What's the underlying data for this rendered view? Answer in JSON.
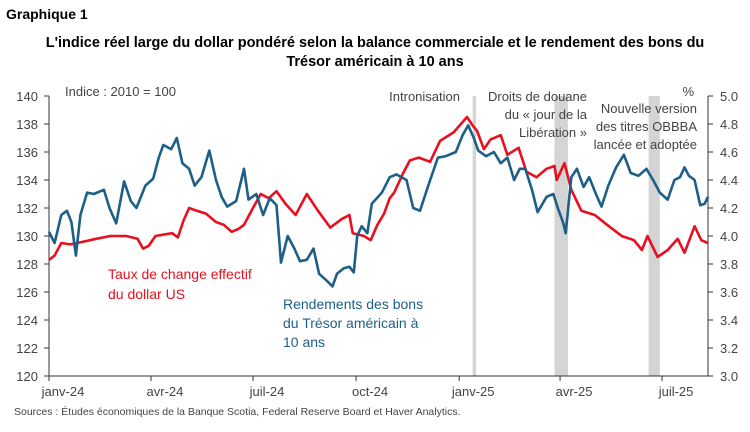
{
  "header": {
    "label": "Graphique 1"
  },
  "chart_data": {
    "type": "line",
    "title_lines": [
      "L'indice réel large du dollar pondéré selon la balance commerciale et le rendement des bons du",
      "Trésor américain à 10 ans"
    ],
    "left_axis": {
      "label": "Indice : 2010 = 100",
      "range": [
        120,
        140
      ],
      "ticks": [
        120,
        122,
        124,
        126,
        128,
        130,
        132,
        134,
        136,
        138,
        140
      ]
    },
    "right_axis": {
      "label": "%",
      "range": [
        3.0,
        5.0
      ],
      "ticks": [
        "3.0",
        "3.2",
        "3.4",
        "3.6",
        "3.8",
        "4.0",
        "4.2",
        "4.4",
        "4.6",
        "4.8",
        "5.0"
      ]
    },
    "x_axis": {
      "range": [
        "2024-01-01",
        "2025-08-11"
      ],
      "ticks": [
        {
          "date": "2024-01-01",
          "label": "janv-24"
        },
        {
          "date": "2024-04-01",
          "label": "avr-24"
        },
        {
          "date": "2024-07-01",
          "label": "juil-24"
        },
        {
          "date": "2024-10-01",
          "label": "oct-24"
        },
        {
          "date": "2025-01-01",
          "label": "janv-25"
        },
        {
          "date": "2025-04-01",
          "label": "avr-25"
        },
        {
          "date": "2025-07-01",
          "label": "juil-25"
        }
      ]
    },
    "grid": false,
    "series": [
      {
        "name_lines": [
          "Taux de change effectif",
          "du dollar US"
        ],
        "axis": "left",
        "color": "#e8101e",
        "points": [
          [
            "2024-01-01",
            128.3
          ],
          [
            "2024-01-06",
            128.6
          ],
          [
            "2024-01-12",
            129.5
          ],
          [
            "2024-01-20",
            129.4
          ],
          [
            "2024-02-01",
            129.6
          ],
          [
            "2024-02-12",
            129.8
          ],
          [
            "2024-02-25",
            130.0
          ],
          [
            "2024-03-10",
            130.0
          ],
          [
            "2024-03-20",
            129.8
          ],
          [
            "2024-03-25",
            129.1
          ],
          [
            "2024-03-30",
            129.3
          ],
          [
            "2024-04-05",
            130.0
          ],
          [
            "2024-04-12",
            130.1
          ],
          [
            "2024-04-20",
            130.2
          ],
          [
            "2024-04-25",
            129.9
          ],
          [
            "2024-04-30",
            131.1
          ],
          [
            "2024-05-05",
            132.0
          ],
          [
            "2024-05-12",
            131.8
          ],
          [
            "2024-05-20",
            131.6
          ],
          [
            "2024-05-29",
            131.0
          ],
          [
            "2024-06-05",
            130.8
          ],
          [
            "2024-06-12",
            130.3
          ],
          [
            "2024-06-18",
            130.5
          ],
          [
            "2024-06-23",
            130.8
          ],
          [
            "2024-07-01",
            132.0
          ],
          [
            "2024-07-08",
            133.0
          ],
          [
            "2024-07-15",
            132.7
          ],
          [
            "2024-07-22",
            133.2
          ],
          [
            "2024-07-30",
            132.3
          ],
          [
            "2024-08-08",
            131.5
          ],
          [
            "2024-08-18",
            133.0
          ],
          [
            "2024-08-28",
            131.8
          ],
          [
            "2024-09-08",
            130.6
          ],
          [
            "2024-09-18",
            131.2
          ],
          [
            "2024-09-25",
            131.5
          ],
          [
            "2024-09-28",
            130.2
          ],
          [
            "2024-10-08",
            130.0
          ],
          [
            "2024-10-14",
            129.7
          ],
          [
            "2024-10-20",
            130.8
          ],
          [
            "2024-10-26",
            131.6
          ],
          [
            "2024-10-31",
            132.7
          ],
          [
            "2024-11-04",
            133.1
          ],
          [
            "2024-11-12",
            134.5
          ],
          [
            "2024-11-18",
            135.4
          ],
          [
            "2024-11-26",
            135.6
          ],
          [
            "2024-12-06",
            135.3
          ],
          [
            "2024-12-15",
            136.8
          ],
          [
            "2024-12-27",
            137.4
          ],
          [
            "2025-01-08",
            138.5
          ],
          [
            "2025-01-13",
            137.9
          ],
          [
            "2025-01-17",
            137.5
          ],
          [
            "2025-01-23",
            136.2
          ],
          [
            "2025-01-29",
            136.9
          ],
          [
            "2025-02-07",
            137.2
          ],
          [
            "2025-02-13",
            135.8
          ],
          [
            "2025-02-23",
            136.3
          ],
          [
            "2025-03-02",
            134.6
          ],
          [
            "2025-03-11",
            134.2
          ],
          [
            "2025-03-20",
            134.8
          ],
          [
            "2025-03-27",
            135.0
          ],
          [
            "2025-03-29",
            134.0
          ],
          [
            "2025-04-05",
            135.2
          ],
          [
            "2025-04-11",
            133.3
          ],
          [
            "2025-04-20",
            131.8
          ],
          [
            "2025-05-02",
            131.5
          ],
          [
            "2025-05-13",
            130.8
          ],
          [
            "2025-05-26",
            130.0
          ],
          [
            "2025-06-06",
            129.7
          ],
          [
            "2025-06-13",
            129.0
          ],
          [
            "2025-06-18",
            130.0
          ],
          [
            "2025-06-27",
            128.5
          ],
          [
            "2025-07-06",
            129.0
          ],
          [
            "2025-07-15",
            129.8
          ],
          [
            "2025-07-21",
            128.8
          ],
          [
            "2025-07-30",
            130.7
          ],
          [
            "2025-08-05",
            129.7
          ],
          [
            "2025-08-11",
            129.5
          ]
        ]
      },
      {
        "name_lines": [
          "Rendements des bons",
          "du Trésor américain à",
          "10 ans"
        ],
        "axis": "right",
        "color": "#1d5f87",
        "points": [
          [
            "2024-01-01",
            4.03
          ],
          [
            "2024-01-06",
            3.95
          ],
          [
            "2024-01-12",
            4.15
          ],
          [
            "2024-01-17",
            4.18
          ],
          [
            "2024-01-21",
            4.1
          ],
          [
            "2024-01-25",
            3.86
          ],
          [
            "2024-01-29",
            4.15
          ],
          [
            "2024-02-04",
            4.31
          ],
          [
            "2024-02-10",
            4.3
          ],
          [
            "2024-02-19",
            4.33
          ],
          [
            "2024-02-24",
            4.2
          ],
          [
            "2024-03-01",
            4.09
          ],
          [
            "2024-03-08",
            4.39
          ],
          [
            "2024-03-14",
            4.25
          ],
          [
            "2024-03-19",
            4.2
          ],
          [
            "2024-03-27",
            4.36
          ],
          [
            "2024-04-03",
            4.41
          ],
          [
            "2024-04-08",
            4.56
          ],
          [
            "2024-04-12",
            4.65
          ],
          [
            "2024-04-19",
            4.62
          ],
          [
            "2024-04-24",
            4.7
          ],
          [
            "2024-04-29",
            4.52
          ],
          [
            "2024-05-05",
            4.48
          ],
          [
            "2024-05-10",
            4.36
          ],
          [
            "2024-05-16",
            4.42
          ],
          [
            "2024-05-23",
            4.61
          ],
          [
            "2024-05-29",
            4.4
          ],
          [
            "2024-06-03",
            4.28
          ],
          [
            "2024-06-08",
            4.21
          ],
          [
            "2024-06-16",
            4.25
          ],
          [
            "2024-06-23",
            4.48
          ],
          [
            "2024-06-27",
            4.26
          ],
          [
            "2024-07-04",
            4.3
          ],
          [
            "2024-07-10",
            4.15
          ],
          [
            "2024-07-16",
            4.27
          ],
          [
            "2024-07-22",
            4.22
          ],
          [
            "2024-07-26",
            3.81
          ],
          [
            "2024-08-01",
            4.0
          ],
          [
            "2024-08-07",
            3.91
          ],
          [
            "2024-08-12",
            3.82
          ],
          [
            "2024-08-18",
            3.83
          ],
          [
            "2024-08-24",
            3.91
          ],
          [
            "2024-08-29",
            3.73
          ],
          [
            "2024-09-05",
            3.68
          ],
          [
            "2024-09-10",
            3.64
          ],
          [
            "2024-09-14",
            3.73
          ],
          [
            "2024-09-20",
            3.77
          ],
          [
            "2024-09-25",
            3.78
          ],
          [
            "2024-09-29",
            3.74
          ],
          [
            "2024-10-02",
            4.0
          ],
          [
            "2024-10-06",
            4.07
          ],
          [
            "2024-10-11",
            4.02
          ],
          [
            "2024-10-15",
            4.23
          ],
          [
            "2024-10-24",
            4.31
          ],
          [
            "2024-10-31",
            4.42
          ],
          [
            "2024-11-06",
            4.44
          ],
          [
            "2024-11-15",
            4.4
          ],
          [
            "2024-11-21",
            4.2
          ],
          [
            "2024-11-27",
            4.18
          ],
          [
            "2024-12-04",
            4.35
          ],
          [
            "2024-12-13",
            4.56
          ],
          [
            "2024-12-20",
            4.57
          ],
          [
            "2024-12-29",
            4.6
          ],
          [
            "2025-01-04",
            4.72
          ],
          [
            "2025-01-09",
            4.79
          ],
          [
            "2025-01-14",
            4.7
          ],
          [
            "2025-01-18",
            4.61
          ],
          [
            "2025-01-25",
            4.57
          ],
          [
            "2025-02-01",
            4.6
          ],
          [
            "2025-02-07",
            4.52
          ],
          [
            "2025-02-13",
            4.56
          ],
          [
            "2025-02-19",
            4.4
          ],
          [
            "2025-02-24",
            4.48
          ],
          [
            "2025-03-01",
            4.48
          ],
          [
            "2025-03-07",
            4.33
          ],
          [
            "2025-03-12",
            4.17
          ],
          [
            "2025-03-20",
            4.28
          ],
          [
            "2025-03-26",
            4.3
          ],
          [
            "2025-03-30",
            4.2
          ],
          [
            "2025-04-04",
            4.09
          ],
          [
            "2025-04-06",
            4.02
          ],
          [
            "2025-04-11",
            4.42
          ],
          [
            "2025-04-16",
            4.48
          ],
          [
            "2025-04-22",
            4.35
          ],
          [
            "2025-04-27",
            4.42
          ],
          [
            "2025-05-03",
            4.3
          ],
          [
            "2025-05-08",
            4.21
          ],
          [
            "2025-05-14",
            4.36
          ],
          [
            "2025-05-21",
            4.49
          ],
          [
            "2025-05-28",
            4.58
          ],
          [
            "2025-06-03",
            4.45
          ],
          [
            "2025-06-10",
            4.43
          ],
          [
            "2025-06-17",
            4.48
          ],
          [
            "2025-06-23",
            4.4
          ],
          [
            "2025-06-29",
            4.31
          ],
          [
            "2025-07-06",
            4.26
          ],
          [
            "2025-07-12",
            4.4
          ],
          [
            "2025-07-17",
            4.42
          ],
          [
            "2025-07-21",
            4.49
          ],
          [
            "2025-07-25",
            4.43
          ],
          [
            "2025-07-30",
            4.4
          ],
          [
            "2025-08-04",
            4.22
          ],
          [
            "2025-08-08",
            4.23
          ],
          [
            "2025-08-11",
            4.28
          ]
        ]
      }
    ],
    "shaded_periods": [
      {
        "start": "2025-01-13",
        "end": "2025-01-16",
        "label_lines": [
          "Intronisation"
        ]
      },
      {
        "start": "2025-03-27",
        "end": "2025-04-08",
        "label_lines": [
          "Droits de douane",
          "du « jour de la",
          "Libération »"
        ]
      },
      {
        "start": "2025-06-19",
        "end": "2025-06-29",
        "label_lines": [
          "Nouvelle version",
          "des titres OBBBA",
          "lancée et adoptée"
        ]
      }
    ],
    "shade_color": "#d4d4d4"
  },
  "source": "Sources : Études économiques de la Banque Scotia, Federal Reserve Board et Haver Analytics."
}
